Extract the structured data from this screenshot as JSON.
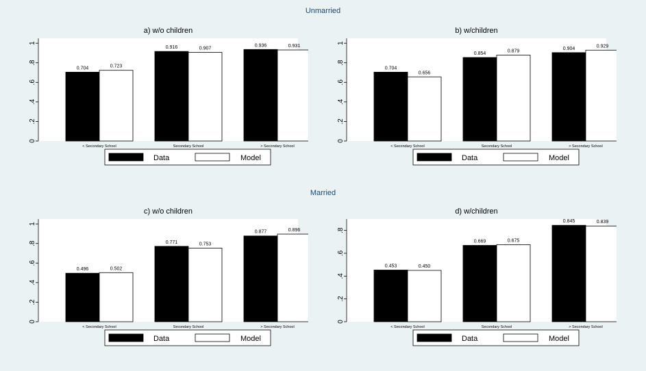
{
  "figure": {
    "group_titles": [
      "Unmarried",
      "Married"
    ],
    "legend": {
      "items": [
        "Data",
        "Model"
      ]
    },
    "colors": {
      "background": "#eaf2f3",
      "plot_area": "#ffffff",
      "data_bar": "#000000",
      "model_bar": "#ffffff",
      "group_title": "#1a476f"
    }
  },
  "chart_data": [
    {
      "type": "bar",
      "group": "Unmarried",
      "title": "a) w/o children",
      "categories": [
        "< Secondary School",
        "Secondary School",
        "> Secondary School"
      ],
      "series": [
        {
          "name": "Data",
          "values": [
            0.704,
            0.916,
            0.936
          ]
        },
        {
          "name": "Model",
          "values": [
            0.723,
            0.907,
            0.931
          ]
        }
      ],
      "data_labels": [
        [
          "0.704",
          "0.916",
          "0.936"
        ],
        [
          "0.723",
          "0.907",
          "0.931"
        ]
      ],
      "ylim": [
        0,
        1.05
      ],
      "yticks": [
        0,
        0.2,
        0.4,
        0.6,
        0.8,
        1
      ],
      "ytick_labels": [
        "0",
        ".2",
        ".4",
        ".6",
        ".8",
        "1"
      ],
      "grid": false,
      "legend": "bottom"
    },
    {
      "type": "bar",
      "group": "Unmarried",
      "title": "b) w/children",
      "categories": [
        "< Secondary School",
        "Secondary School",
        "> Secondary School"
      ],
      "series": [
        {
          "name": "Data",
          "values": [
            0.704,
            0.854,
            0.904
          ]
        },
        {
          "name": "Model",
          "values": [
            0.656,
            0.879,
            0.929
          ]
        }
      ],
      "data_labels": [
        [
          "0.704",
          "0.854",
          "0.904"
        ],
        [
          "0.656",
          "0.879",
          "0.929"
        ]
      ],
      "ylim": [
        0,
        1.05
      ],
      "yticks": [
        0,
        0.2,
        0.4,
        0.6,
        0.8,
        1
      ],
      "ytick_labels": [
        "0",
        ".2",
        ".4",
        ".6",
        ".8",
        "1"
      ],
      "grid": false,
      "legend": "bottom"
    },
    {
      "type": "bar",
      "group": "Married",
      "title": "c) w/o children",
      "categories": [
        "< Secondary School",
        "Secondary School",
        "> Secondary School"
      ],
      "series": [
        {
          "name": "Data",
          "values": [
            0.496,
            0.771,
            0.877
          ]
        },
        {
          "name": "Model",
          "values": [
            0.502,
            0.753,
            0.896
          ]
        }
      ],
      "data_labels": [
        [
          "0.496",
          "0.771",
          "0.877"
        ],
        [
          "0.502",
          "0.753",
          "0.896"
        ]
      ],
      "ylim": [
        0,
        1.05
      ],
      "yticks": [
        0,
        0.2,
        0.4,
        0.6,
        0.8,
        1
      ],
      "ytick_labels": [
        "0",
        ".2",
        ".4",
        ".6",
        ".8",
        "1"
      ],
      "grid": false,
      "legend": "bottom"
    },
    {
      "type": "bar",
      "group": "Married",
      "title": "d) w/children",
      "categories": [
        "< Secondary School",
        "Secondary School",
        "> Secondary School"
      ],
      "series": [
        {
          "name": "Data",
          "values": [
            0.453,
            0.669,
            0.845
          ]
        },
        {
          "name": "Model",
          "values": [
            0.45,
            0.675,
            0.839
          ]
        }
      ],
      "data_labels": [
        [
          "0.453",
          "0.669",
          "0.845"
        ],
        [
          "0.450",
          "0.675",
          "0.839"
        ]
      ],
      "ylim": [
        0,
        0.9
      ],
      "yticks": [
        0,
        0.2,
        0.4,
        0.6,
        0.8
      ],
      "ytick_labels": [
        "0",
        ".2",
        ".4",
        ".6",
        ".8"
      ],
      "grid": false,
      "legend": "bottom"
    }
  ]
}
